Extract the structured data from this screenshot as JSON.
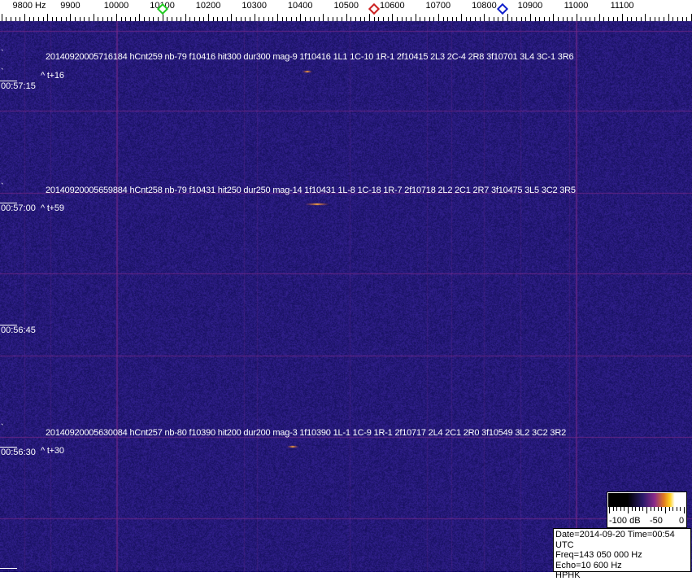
{
  "axis": {
    "unit_label": "9800 Hz",
    "ticks": [
      "9900",
      "10000",
      "10100",
      "10200",
      "10300",
      "10400",
      "10500",
      "10600",
      "10700",
      "10800",
      "10900",
      "11000",
      "11100"
    ]
  },
  "markers": [
    {
      "name": "green",
      "freq_hz": 10100,
      "color": "#22cc22"
    },
    {
      "name": "red",
      "freq_hz": 10560,
      "color": "#cc2020"
    },
    {
      "name": "blue",
      "freq_hz": 10840,
      "color": "#1020cc"
    }
  ],
  "colors": {
    "background": "#211a74",
    "gridline": "#7a2a8a"
  },
  "detections": [
    {
      "text": "20140920005716184 hCnt259 nb-79 f10416 hit300 dur300 mag-9 1f10416 1L1 1C-10 1R-1 2f10415 2L3 2C-4 2R8 3f10701 3L4 3C-1 3R6",
      "offset": "^ t+16"
    },
    {
      "text": "20140920005659884 hCnt258 nb-79 f10431 hit250 dur250 mag-14 1f10431 1L-8 1C-18 1R-7 2f10718 2L2 2C1 2R7 3f10475 3L5 3C2 3R5",
      "offset": "^ t+59"
    },
    {
      "text": "20140920005630084 hCnt257 nb-80 f10390 hit200 dur200 mag-3 1f10390 1L-1 1C-9 1R-1 2f10717 2L4 2C1 2R0 3f10549 3L2 3C2 3R2",
      "offset": "^ t+30"
    }
  ],
  "times": [
    "00:57:15",
    "00:57:00",
    "00:56:45",
    "00:56:30"
  ],
  "scale": {
    "labels": [
      "-100 dB",
      "-50",
      "0"
    ]
  },
  "info": {
    "date_line": "Date=2014-09-20 Time=00:54 UTC",
    "freq_line": "Freq=143 050 000 Hz",
    "echo_line": "Echo=10 600 Hz",
    "station": "HPHK"
  }
}
